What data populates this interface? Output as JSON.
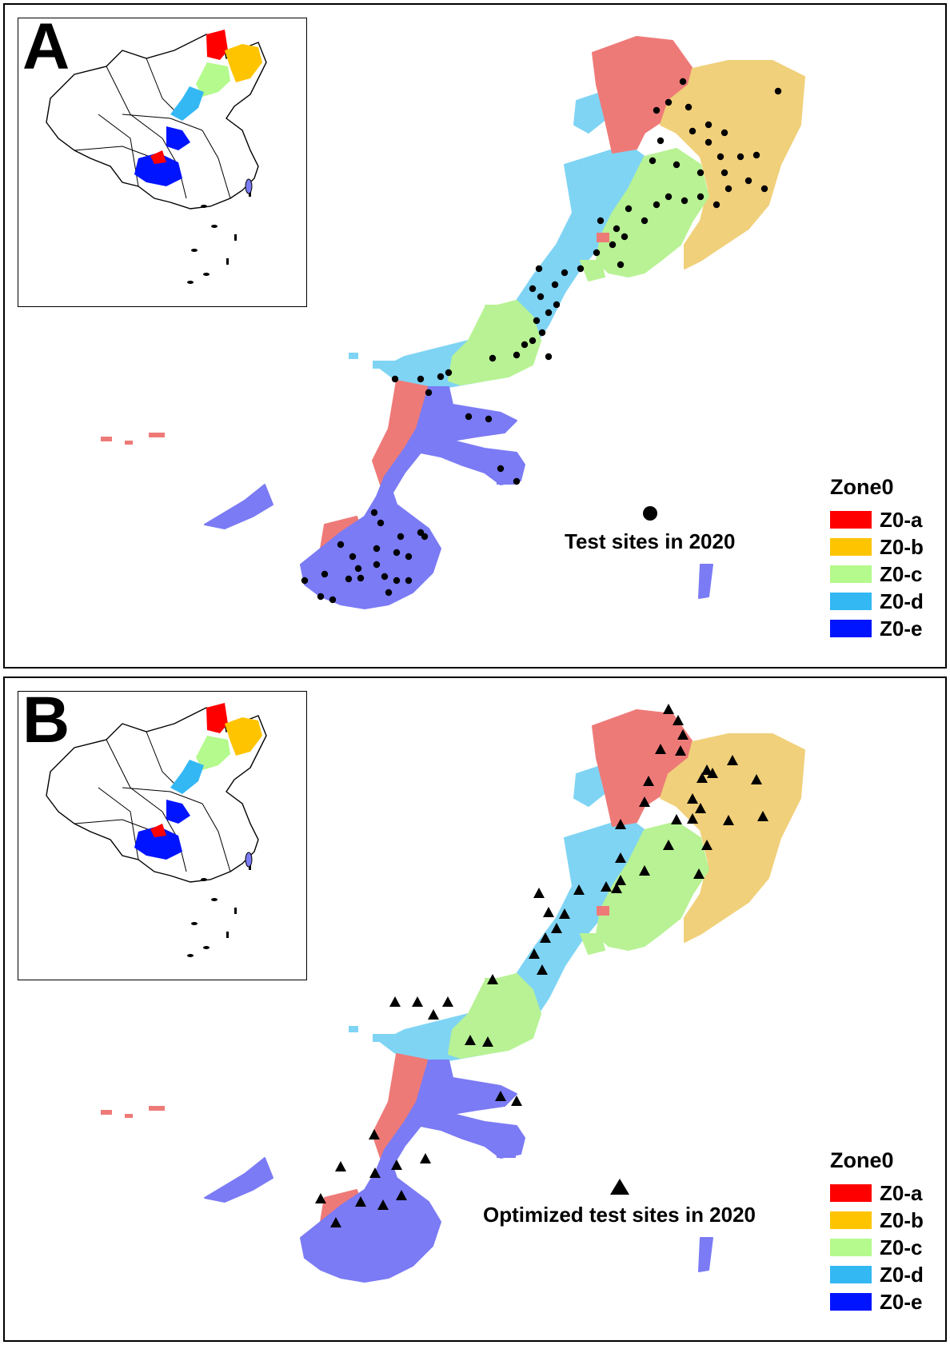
{
  "panels": [
    {
      "letter": "A",
      "site_label": "Test sites in 2020",
      "marker": "circle",
      "legend": {
        "title": "Zone0",
        "items": [
          {
            "label": "Z0-a",
            "color": "#ff0000"
          },
          {
            "label": "Z0-b",
            "color": "#ffc400"
          },
          {
            "label": "Z0-c",
            "color": "#b4fa8c"
          },
          {
            "label": "Z0-d",
            "color": "#33b8f4"
          },
          {
            "label": "Z0-e",
            "color": "#0014ff"
          }
        ]
      }
    },
    {
      "letter": "B",
      "site_label": "Optimized test sites in 2020",
      "marker": "triangle",
      "legend": {
        "title": "Zone0",
        "items": [
          {
            "label": "Z0-a",
            "color": "#ff0000"
          },
          {
            "label": "Z0-b",
            "color": "#ffc400"
          },
          {
            "label": "Z0-c",
            "color": "#b4fa8c"
          },
          {
            "label": "Z0-d",
            "color": "#33b8f4"
          },
          {
            "label": "Z0-e",
            "color": "#0014ff"
          }
        ]
      }
    }
  ],
  "map_colors": {
    "zone_a": "#ee7a78",
    "zone_b": "#f0d07a",
    "zone_c": "#b8f294",
    "zone_d": "#7fd4f4",
    "zone_e": "#7b7bf5"
  }
}
